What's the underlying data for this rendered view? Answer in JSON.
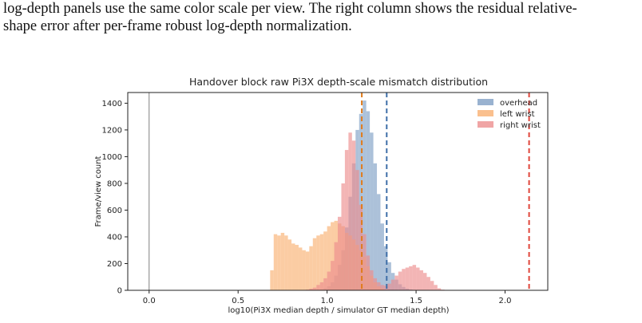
{
  "caption": {
    "line1": "log-depth panels use the same color scale per view.  The right column shows the residual relative-",
    "line2": "shape error after per-frame robust log-depth normalization."
  },
  "chart_data": {
    "type": "histogram",
    "title": "Handover block raw Pi3X depth-scale mismatch distribution",
    "xlabel": "log10(Pi3X median depth / simulator GT median depth)",
    "ylabel": "Frame/view count",
    "xlim": [
      -0.12,
      2.24
    ],
    "ylim": [
      0,
      1480
    ],
    "xticks": [
      "0.0",
      "0.5",
      "1.0",
      "1.5",
      "2.0"
    ],
    "xtick_values": [
      0.0,
      0.5,
      1.0,
      1.5,
      2.0
    ],
    "yticks": [
      "0",
      "200",
      "400",
      "600",
      "800",
      "1000",
      "1200",
      "1400"
    ],
    "ytick_values": [
      0,
      200,
      400,
      600,
      800,
      1000,
      1200,
      1400
    ],
    "bin_width": 0.02,
    "legend_position": "top-right",
    "series": [
      {
        "name": "overhead",
        "color": "#7f9fc4",
        "bins": [
          {
            "x": 0.96,
            "values": [
              5,
              15,
              30,
              60,
              110,
              190,
              300,
              470,
              700,
              950,
              1200,
              1320,
              1420,
              1340,
              1180,
              950,
              720,
              500,
              330,
              210,
              130,
              80,
              45,
              25,
              12,
              6,
              3
            ]
          }
        ]
      },
      {
        "name": "left wrist",
        "color": "#f9b072",
        "bins": [
          {
            "x": 0.68,
            "values": [
              150,
              420,
              410,
              430,
              410,
              380,
              350,
              340,
              320,
              300,
              290,
              330,
              390,
              410,
              420,
              440,
              480,
              510,
              520,
              500,
              480,
              430,
              410,
              380,
              340,
              300,
              250,
              180,
              110,
              60,
              30,
              15
            ]
          }
        ]
      },
      {
        "name": "right wrist",
        "color": "#ec8e8e",
        "bins": [
          {
            "x": 0.88,
            "values": [
              5,
              12,
              20,
              40,
              60,
              90,
              140,
              220,
              360,
              550,
              800,
              1050,
              1180,
              1120,
              900,
              640,
              420,
              260,
              150,
              90,
              60,
              40,
              35,
              50,
              80,
              110,
              140,
              160,
              170,
              180,
              190,
              170,
              150,
              130,
              100,
              70,
              40,
              15,
              5
            ]
          }
        ]
      }
    ],
    "vlines": [
      {
        "x": 0.0,
        "color": "#808080",
        "style": "solid"
      },
      {
        "x": 1.195,
        "color": "#e07b1a",
        "style": "dashed"
      },
      {
        "x": 1.335,
        "color": "#3f6fa8",
        "style": "dashed"
      },
      {
        "x": 2.135,
        "color": "#e0453a",
        "style": "dashed"
      }
    ]
  }
}
